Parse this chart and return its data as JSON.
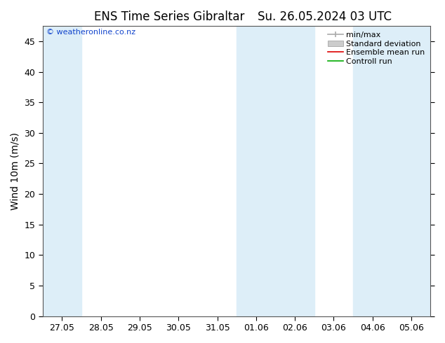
{
  "title_left": "ENS Time Series Gibraltar",
  "title_right": "Su. 26.05.2024 03 UTC",
  "ylabel": "Wind 10m (m/s)",
  "ylim": [
    0,
    47.5
  ],
  "yticks": [
    0,
    5,
    10,
    15,
    20,
    25,
    30,
    35,
    40,
    45
  ],
  "x_labels": [
    "27.05",
    "28.05",
    "29.05",
    "30.05",
    "31.05",
    "01.06",
    "02.06",
    "03.06",
    "04.06",
    "05.06"
  ],
  "background_color": "#ffffff",
  "band_color": "#ddeef8",
  "watermark": "© weatheronline.co.nz",
  "legend_labels": [
    "min/max",
    "Standard deviation",
    "Ensemble mean run",
    "Controll run"
  ],
  "title_fontsize": 12,
  "ylabel_fontsize": 10,
  "tick_fontsize": 9,
  "legend_fontsize": 8
}
